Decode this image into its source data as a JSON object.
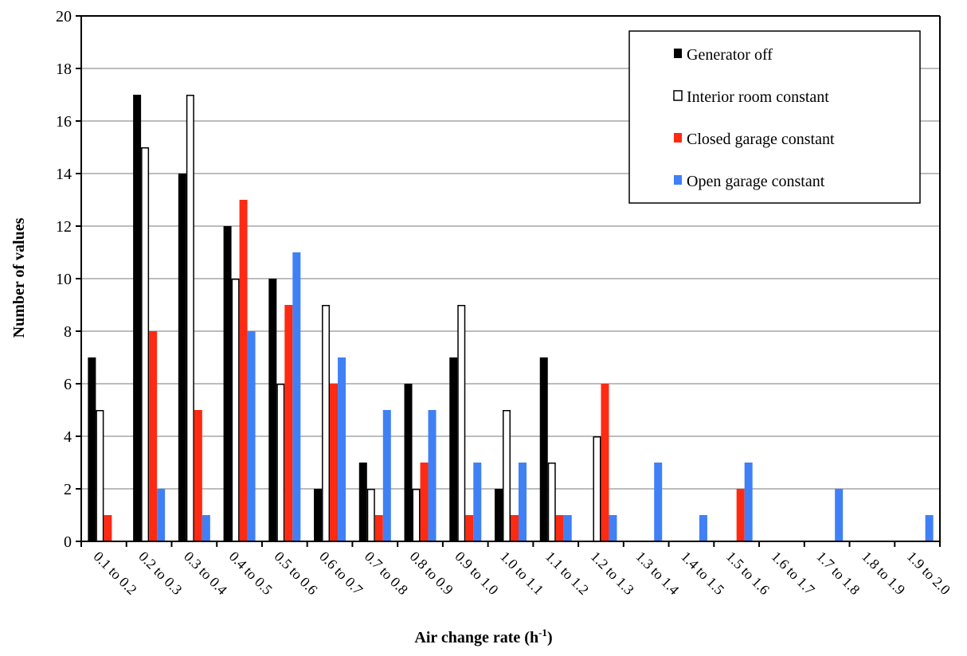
{
  "chart_data": {
    "type": "bar",
    "title": "",
    "xlabel": "Air change rate (h",
    "xlabel_sup": "-1",
    "xlabel_suffix": ")",
    "ylabel": "Number of values",
    "ylim": [
      0,
      20
    ],
    "yticks": [
      0,
      2,
      4,
      6,
      8,
      10,
      12,
      14,
      16,
      18,
      20
    ],
    "grid": true,
    "legend_position": "top-right",
    "categories": [
      "0.1 to 0.2",
      "0.2 to 0.3",
      "0.3 to 0.4",
      "0.4 to 0.5",
      "0.5 to 0.6",
      "0.6 to 0.7",
      "0.7 to 0.8",
      "0.8 to 0.9",
      "0.9 to 1.0",
      "1.0 to 1.1",
      "1.1 to 1.2",
      "1.2 to 1.3",
      "1.3 to 1.4",
      "1.4 to 1.5",
      "1.5 to 1.6",
      "1.6 to 1.7",
      "1.7 to 1.8",
      "1.8 to 1.9",
      "1.9 to 2.0"
    ],
    "series": [
      {
        "name": "Generator off",
        "color": "#000000",
        "fill": "#000000",
        "values": [
          7,
          17,
          14,
          12,
          10,
          2,
          3,
          6,
          7,
          2,
          7,
          0,
          0,
          0,
          0,
          0,
          0,
          0,
          0
        ]
      },
      {
        "name": "Interior room constant",
        "color": "#000000",
        "fill": "#ffffff",
        "values": [
          5,
          15,
          17,
          10,
          6,
          9,
          2,
          2,
          9,
          5,
          3,
          4,
          0,
          0,
          0,
          0,
          0,
          0,
          0
        ]
      },
      {
        "name": "Closed garage constant",
        "color": "#ff2a12",
        "fill": "#ff2a12",
        "values": [
          1,
          8,
          5,
          13,
          9,
          6,
          1,
          3,
          1,
          1,
          1,
          6,
          0,
          0,
          2,
          0,
          0,
          0,
          0
        ]
      },
      {
        "name": "Open garage constant",
        "color": "#3f80f6",
        "fill": "#3f80f6",
        "values": [
          0,
          2,
          1,
          8,
          11,
          7,
          5,
          5,
          3,
          3,
          1,
          1,
          3,
          1,
          3,
          0,
          2,
          0,
          1
        ]
      }
    ]
  }
}
